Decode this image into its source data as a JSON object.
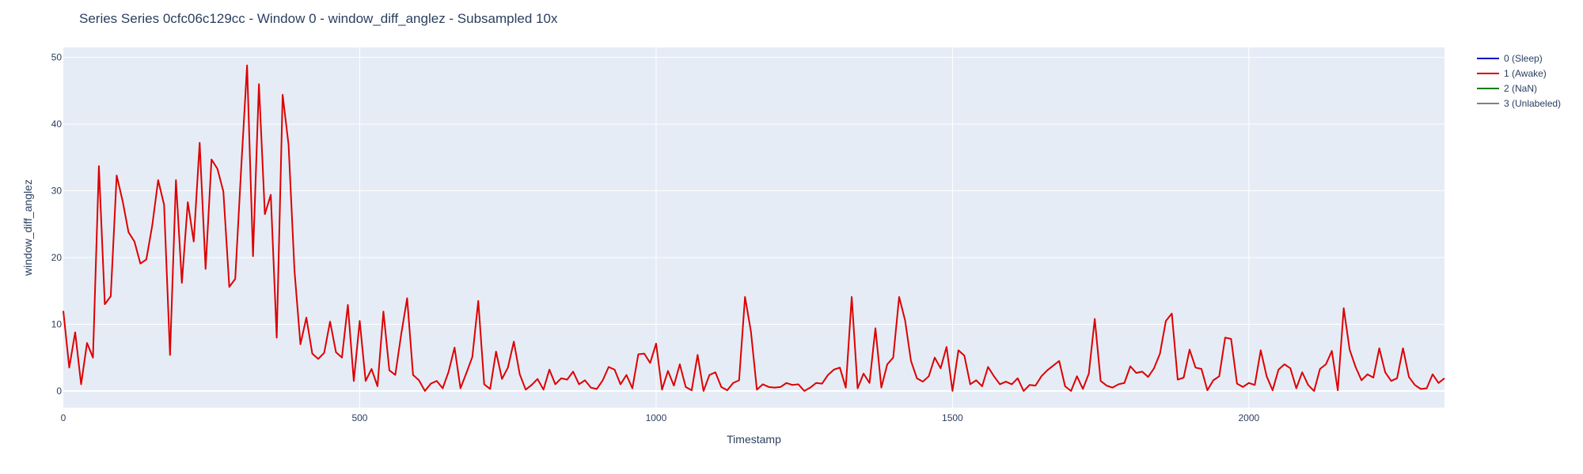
{
  "chart_data": {
    "type": "line",
    "title": "Series Series 0cfc06c129cc - Window 0 - window_diff_anglez - Subsampled 10x",
    "xlabel": "Timestamp",
    "ylabel": "window_diff_anglez",
    "xlim": [
      0,
      2330
    ],
    "ylim": [
      -2.5,
      51.5
    ],
    "x_ticks": [
      0,
      500,
      1000,
      1500,
      2000
    ],
    "y_ticks": [
      0,
      10,
      20,
      30,
      40,
      50
    ],
    "grid": true,
    "background": "#e5ecf6",
    "legend_position": "top-right",
    "series": [
      {
        "name": "0 (Sleep)",
        "color": "#0000cc",
        "x": [],
        "y": []
      },
      {
        "name": "1 (Awake)",
        "color": "#dd0000",
        "x": [
          0,
          10,
          20,
          30,
          40,
          50,
          60,
          70,
          80,
          90,
          100,
          110,
          120,
          130,
          140,
          150,
          160,
          170,
          180,
          190,
          200,
          210,
          220,
          230,
          240,
          250,
          260,
          270,
          280,
          290,
          300,
          310,
          320,
          330,
          340,
          350,
          360,
          370,
          380,
          390,
          400,
          410,
          420,
          430,
          440,
          450,
          460,
          470,
          480,
          490,
          500,
          510,
          520,
          530,
          540,
          550,
          560,
          570,
          580,
          590,
          600,
          610,
          620,
          630,
          640,
          650,
          660,
          670,
          680,
          690,
          700,
          710,
          720,
          730,
          740,
          750,
          760,
          770,
          780,
          790,
          800,
          810,
          820,
          830,
          840,
          850,
          860,
          870,
          880,
          890,
          900,
          910,
          920,
          930,
          940,
          950,
          960,
          970,
          980,
          990,
          1000,
          1010,
          1020,
          1030,
          1040,
          1050,
          1060,
          1070,
          1080,
          1090,
          1100,
          1110,
          1120,
          1130,
          1140,
          1150,
          1160,
          1170,
          1180,
          1190,
          1200,
          1210,
          1220,
          1230,
          1240,
          1250,
          1260,
          1270,
          1280,
          1290,
          1300,
          1310,
          1320,
          1330,
          1340,
          1350,
          1360,
          1370,
          1380,
          1390,
          1400,
          1410,
          1420,
          1430,
          1440,
          1450,
          1460,
          1470,
          1480,
          1490,
          1500,
          1510,
          1520,
          1530,
          1540,
          1550,
          1560,
          1570,
          1580,
          1590,
          1600,
          1610,
          1620,
          1630,
          1640,
          1650,
          1660,
          1670,
          1680,
          1690,
          1700,
          1710,
          1720,
          1730,
          1740,
          1750,
          1760,
          1770,
          1780,
          1790,
          1800,
          1810,
          1820,
          1830,
          1840,
          1850,
          1860,
          1870,
          1880,
          1890,
          1900,
          1910,
          1920,
          1930,
          1940,
          1950,
          1960,
          1970,
          1980,
          1990,
          2000,
          2010,
          2020,
          2030,
          2040,
          2050,
          2060,
          2070,
          2080,
          2090,
          2100,
          2110,
          2120,
          2130,
          2140,
          2150,
          2160,
          2170,
          2180,
          2190,
          2200,
          2210,
          2220,
          2230,
          2240,
          2250,
          2260,
          2270,
          2280,
          2290,
          2300,
          2310,
          2320,
          2330
        ],
        "y": [
          12,
          3.5,
          8.8,
          1,
          7.2,
          5,
          33.7,
          13,
          14.2,
          32.3,
          28.5,
          23.8,
          22.4,
          19.1,
          19.7,
          24.8,
          31.6,
          27.9,
          5.4,
          31.6,
          16.2,
          28.3,
          22.4,
          37.2,
          18.3,
          34.7,
          33.3,
          29.9,
          15.6,
          16.8,
          33.3,
          48.8,
          20.2,
          46,
          26.5,
          29.4,
          8,
          44.4,
          36.9,
          18,
          7,
          11,
          5.6,
          4.8,
          5.7,
          10.4,
          5.8,
          5,
          12.9,
          1.5,
          10.5,
          1.5,
          3.3,
          0.7,
          11.9,
          3.1,
          2.4,
          8.5,
          13.9,
          2.4,
          1.6,
          0,
          1.1,
          1.5,
          0.4,
          2.9,
          6.5,
          0.4,
          2.7,
          5.1,
          13.5,
          1,
          0.3,
          5.9,
          1.8,
          3.5,
          7.4,
          2.5,
          0.2,
          0.9,
          1.8,
          0.2,
          3.2,
          1,
          1.9,
          1.7,
          2.9,
          1,
          1.6,
          0.5,
          0.3,
          1.6,
          3.6,
          3.2,
          1,
          2.4,
          0.4,
          5.5,
          5.6,
          4.2,
          7.1,
          0.2,
          3,
          0.8,
          4,
          0.6,
          0.1,
          5.4,
          0,
          2.4,
          2.8,
          0.6,
          0.1,
          1.2,
          1.6,
          14.1,
          8.9,
          0.2,
          1,
          0.6,
          0.5,
          0.6,
          1.2,
          0.9,
          1,
          0,
          0.5,
          1.2,
          1.1,
          2.4,
          3.2,
          3.5,
          0.5,
          14.1,
          0.4,
          2.6,
          1.2,
          9.4,
          0.5,
          4,
          5,
          14.1,
          10.6,
          4.5,
          1.9,
          1.4,
          2.2,
          5,
          3.4,
          6.6,
          0,
          6.1,
          5.3,
          1,
          1.6,
          0.7,
          3.6,
          2.2,
          1,
          1.4,
          1,
          1.9,
          0,
          0.9,
          0.8,
          2.2,
          3.1,
          3.8,
          4.5,
          0.7,
          0,
          2.2,
          0.3,
          2.6,
          10.8,
          1.5,
          0.8,
          0.5,
          1,
          1.2,
          3.7,
          2.7,
          2.9,
          2.1,
          3.4,
          5.6,
          10.5,
          11.6,
          1.7,
          2,
          6.2,
          3.5,
          3.3,
          0.1,
          1.6,
          2.2,
          8,
          7.8,
          1.1,
          0.6,
          1.2,
          0.9,
          6.1,
          2.2,
          0.1,
          3.2,
          4,
          3.4,
          0.4,
          2.8,
          0.9,
          0,
          3.3,
          4,
          6,
          0.1,
          12.4,
          6.2,
          3.6,
          1.6,
          2.5,
          2,
          6.4,
          2.8,
          1.5,
          1.9,
          6.4,
          2.1,
          0.9,
          0.3,
          0.4,
          2.5,
          1.2,
          1.9
        ]
      },
      {
        "name": "2 (NaN)",
        "color": "#008000",
        "x": [],
        "y": []
      },
      {
        "name": "3 (Unlabeled)",
        "color": "#808080",
        "x": [],
        "y": []
      }
    ]
  }
}
